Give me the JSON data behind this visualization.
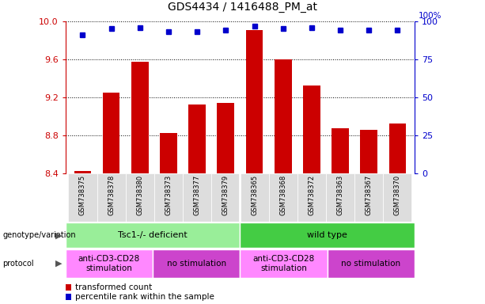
{
  "title": "GDS4434 / 1416488_PM_at",
  "samples": [
    "GSM738375",
    "GSM738378",
    "GSM738380",
    "GSM738373",
    "GSM738377",
    "GSM738379",
    "GSM738365",
    "GSM738368",
    "GSM738372",
    "GSM738363",
    "GSM738367",
    "GSM738370"
  ],
  "transformed_counts": [
    8.42,
    9.25,
    9.57,
    8.82,
    9.12,
    9.14,
    9.91,
    9.6,
    9.32,
    8.87,
    8.86,
    8.92
  ],
  "percentile_ranks": [
    91,
    95,
    96,
    93,
    93,
    94,
    97,
    95,
    96,
    94,
    94,
    94
  ],
  "ylim_left": [
    8.4,
    10.0
  ],
  "ylim_right": [
    0,
    100
  ],
  "bar_color": "#cc0000",
  "dot_color": "#0000cc",
  "title_fontsize": 10,
  "tick_color_left": "#cc0000",
  "tick_color_right": "#0000cc",
  "genotype_groups": [
    {
      "label": "Tsc1-/- deficient",
      "start": 0,
      "end": 6,
      "color": "#99ee99"
    },
    {
      "label": "wild type",
      "start": 6,
      "end": 12,
      "color": "#44cc44"
    }
  ],
  "protocol_groups": [
    {
      "label": "anti-CD3-CD28\nstimulation",
      "start": 0,
      "end": 3,
      "color": "#ff88ff"
    },
    {
      "label": "no stimulation",
      "start": 3,
      "end": 6,
      "color": "#cc44cc"
    },
    {
      "label": "anti-CD3-CD28\nstimulation",
      "start": 6,
      "end": 9,
      "color": "#ff88ff"
    },
    {
      "label": "no stimulation",
      "start": 9,
      "end": 12,
      "color": "#cc44cc"
    }
  ],
  "yticks_left": [
    8.4,
    8.8,
    9.2,
    9.6,
    10.0
  ],
  "yticks_right": [
    0,
    25,
    50,
    75,
    100
  ],
  "legend_items": [
    {
      "label": "transformed count",
      "color": "#cc0000"
    },
    {
      "label": "percentile rank within the sample",
      "color": "#0000cc"
    }
  ],
  "xticklabel_bg": "#dddddd"
}
